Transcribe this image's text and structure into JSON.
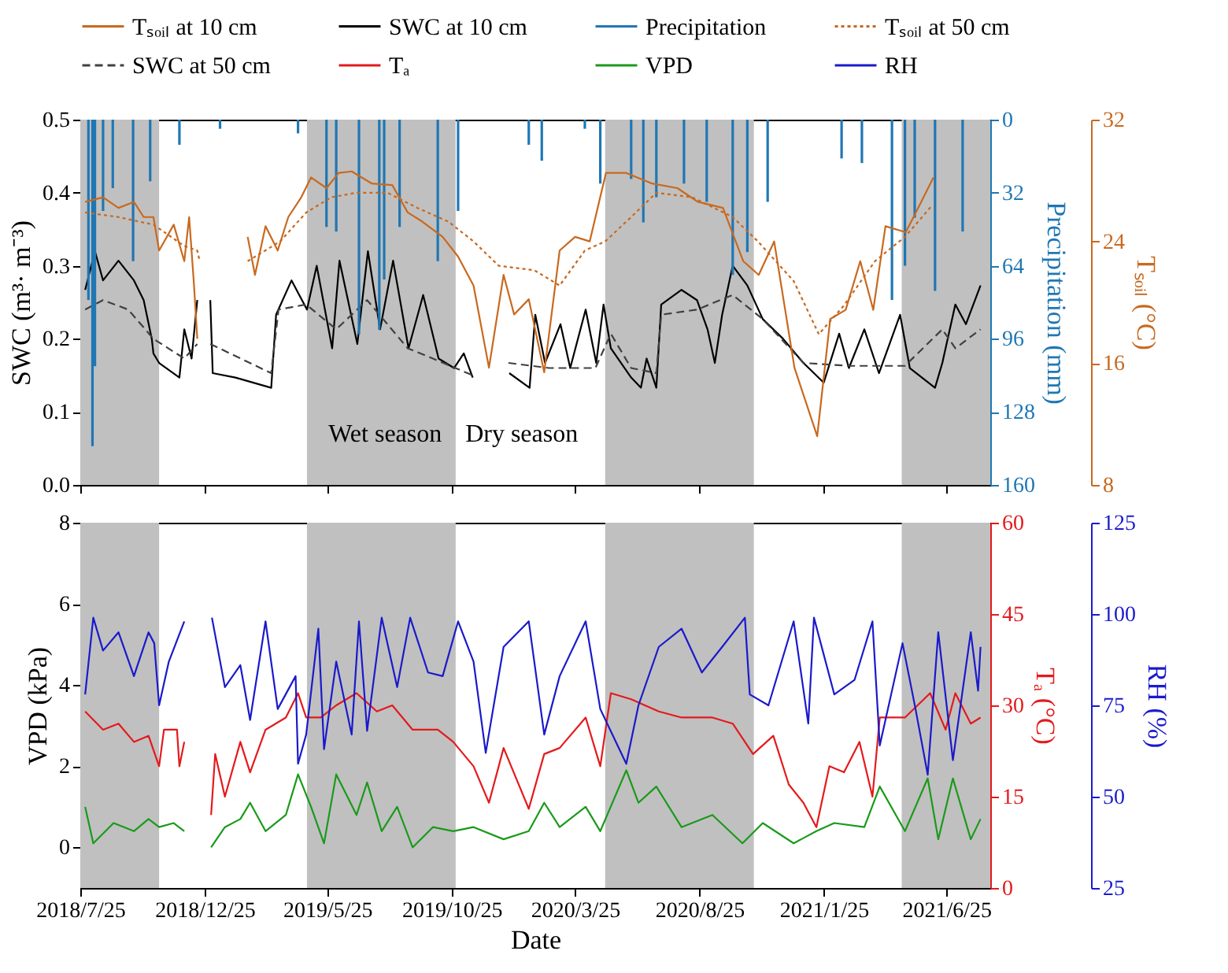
{
  "chart_data": [
    {
      "type": "line",
      "xlim": [
        "2018-07-25",
        "2021-08-18"
      ],
      "xticks": [
        {
          "value": "2018-07-25",
          "label": null
        },
        {
          "value": "2018-12-25",
          "label": null
        },
        {
          "value": "2019-05-25",
          "label": null
        },
        {
          "value": "2019-10-25",
          "label": null
        },
        {
          "value": "2020-03-25",
          "label": null
        },
        {
          "value": "2020-08-25",
          "label": null
        },
        {
          "value": "2021-01-25",
          "label": null
        },
        {
          "value": "2021-06-25",
          "label": null
        }
      ],
      "ylim": [
        0,
        0.5
      ],
      "yticks": [
        {
          "value": 0,
          "label": "0.0"
        },
        0.1,
        0.2,
        0.3,
        0.4,
        0.5
      ],
      "ylabel": "SWC (m³· m⁻³)",
      "y2lim": [
        160,
        0
      ],
      "y2ticks": [
        0,
        32,
        64,
        96,
        128,
        160
      ],
      "y2label": "Precipitation (mm)",
      "y3lim": [
        8,
        32
      ],
      "y3ticks": [
        8,
        16,
        24,
        32
      ],
      "y3label": "Tₛₒᵢₗ (°C)",
      "tick_labels": "y",
      "legend": "top",
      "bands": [
        {
          "axis": "x",
          "from": "2018-07-25",
          "to": "2018-10-30",
          "color": "#c0c0c0"
        },
        {
          "axis": "x",
          "from": "2019-04-30",
          "to": "2019-10-30",
          "color": "#c0c0c0"
        },
        {
          "axis": "x",
          "from": "2020-05-01",
          "to": "2020-10-31",
          "color": "#c0c0c0"
        },
        {
          "axis": "x",
          "from": "2021-05-01",
          "to": "2021-08-18",
          "color": "#c0c0c0"
        }
      ],
      "annotations": [
        "Wet season",
        "Dry season"
      ],
      "series": [
        {
          "name": "Tₛₒᵢₗ at 10 cm",
          "axis": "y3",
          "color": "#c8691f",
          "line_style": "solid",
          "x": [
            "2018-07-31",
            "2018-08-22",
            "2018-09-10",
            "2018-09-29",
            "2018-10-11",
            "2018-10-23",
            "2018-10-30",
            "2018-11-17",
            "2018-11-30",
            "2018-12-06",
            "2018-12-12",
            "2018-12-16",
            "2019-01-15",
            "2019-02-16",
            "2019-02-25",
            "2019-03-10",
            "2019-03-25",
            "2019-04-07",
            "2019-04-23",
            "2019-05-05",
            "2019-05-24",
            "2019-06-08",
            "2019-06-24",
            "2019-07-19",
            "2019-08-13",
            "2019-09-01",
            "2019-09-19",
            "2019-10-14",
            "2019-11-02",
            "2019-11-21",
            "2019-12-10",
            "2019-12-28",
            "2020-01-10",
            "2020-01-28",
            "2020-02-16",
            "2020-03-06",
            "2020-03-25",
            "2020-04-12",
            "2020-05-02",
            "2020-05-27",
            "2020-06-28",
            "2020-07-29",
            "2020-08-23",
            "2020-09-23",
            "2020-10-18",
            "2020-11-06",
            "2020-11-25",
            "2020-12-20",
            "2021-01-17",
            "2021-02-02",
            "2021-02-21",
            "2021-03-11",
            "2021-03-27",
            "2021-04-11",
            "2021-05-06",
            "2021-05-25",
            "2021-06-09"
          ],
          "values": [
            26.6,
            26.9,
            26.2,
            26.6,
            25.6,
            25.6,
            23.4,
            25.1,
            22.7,
            25.6,
            21.1,
            17.6,
            null,
            24.3,
            21.8,
            25.0,
            23.4,
            25.6,
            26.9,
            28.2,
            27.5,
            28.5,
            28.6,
            27.8,
            27.7,
            25.9,
            25.3,
            24.3,
            23.0,
            21.1,
            15.7,
            21.8,
            19.2,
            20.2,
            15.4,
            23.4,
            24.3,
            24.0,
            28.5,
            28.5,
            27.8,
            27.5,
            26.6,
            26.2,
            22.7,
            21.8,
            24.0,
            15.7,
            11.2,
            18.9,
            19.5,
            22.7,
            19.5,
            25.0,
            24.6,
            26.6,
            28.2
          ]
        },
        {
          "name": "SWC at 10 cm",
          "axis": "y",
          "color": "#000000",
          "line_style": "solid",
          "x": [
            "2018-07-31",
            "2018-08-12",
            "2018-08-22",
            "2018-09-10",
            "2018-09-29",
            "2018-10-11",
            "2018-10-21",
            "2018-10-23",
            "2018-10-30",
            "2018-11-24",
            "2018-11-30",
            "2018-12-09",
            "2018-12-16",
            "2018-12-24",
            "2019-01-01",
            "2019-01-04",
            "2019-02-01",
            "2019-03-17",
            "2019-03-23",
            "2019-04-11",
            "2019-04-30",
            "2019-05-12",
            "2019-05-31",
            "2019-06-09",
            "2019-07-01",
            "2019-07-14",
            "2019-07-29",
            "2019-08-14",
            "2019-09-02",
            "2019-09-20",
            "2019-10-09",
            "2019-10-28",
            "2019-11-09",
            "2019-11-20",
            "2019-12-10",
            "2020-01-04",
            "2020-01-29",
            "2020-02-05",
            "2020-02-17",
            "2020-03-07",
            "2020-03-19",
            "2020-04-07",
            "2020-04-20",
            "2020-04-29",
            "2020-05-08",
            "2020-06-02",
            "2020-06-14",
            "2020-06-21",
            "2020-07-03",
            "2020-07-09",
            "2020-08-03",
            "2020-08-22",
            "2020-09-04",
            "2020-09-13",
            "2020-09-22",
            "2020-10-05",
            "2020-10-23",
            "2020-11-11",
            "2020-12-06",
            "2020-12-31",
            "2021-01-25",
            "2021-02-13",
            "2021-02-25",
            "2021-03-16",
            "2021-04-03",
            "2021-04-29",
            "2021-05-11",
            "2021-06-11",
            "2021-06-20",
            "2021-07-06",
            "2021-07-19",
            "2021-08-06"
          ],
          "values": [
            0.267,
            0.32,
            0.28,
            0.307,
            0.28,
            0.253,
            0.2,
            0.18,
            0.167,
            0.147,
            0.213,
            0.173,
            0.253,
            null,
            0.253,
            0.153,
            0.147,
            0.133,
            0.233,
            0.28,
            0.24,
            0.3,
            0.187,
            0.307,
            0.193,
            0.32,
            0.213,
            0.307,
            0.187,
            0.26,
            0.173,
            0.16,
            0.18,
            0.147,
            null,
            0.153,
            0.133,
            0.233,
            0.167,
            0.22,
            0.16,
            0.24,
            0.167,
            0.247,
            0.187,
            0.147,
            0.133,
            0.173,
            0.133,
            0.247,
            0.267,
            0.253,
            0.213,
            0.167,
            0.233,
            0.3,
            0.273,
            0.227,
            0.2,
            0.167,
            0.14,
            0.207,
            0.16,
            0.213,
            0.153,
            0.233,
            0.16,
            0.133,
            0.167,
            0.247,
            0.22,
            0.273
          ]
        },
        {
          "name": "Precipitation",
          "type": "bar",
          "axis": "y2",
          "color": "#1f77b4",
          "x": [
            "2018-08-04",
            "2018-08-09",
            "2018-08-12",
            "2018-08-22",
            "2018-09-03",
            "2018-09-28",
            "2018-10-19",
            "2018-11-24",
            "2019-01-13",
            "2019-04-19",
            "2019-05-24",
            "2019-06-05",
            "2019-07-03",
            "2019-07-28",
            "2019-08-03",
            "2019-08-22",
            "2019-10-08",
            "2019-11-02",
            "2020-01-28",
            "2020-02-13",
            "2020-04-06",
            "2020-04-25",
            "2020-06-02",
            "2020-06-17",
            "2020-07-03",
            "2020-08-06",
            "2020-09-03",
            "2020-10-05",
            "2020-10-23",
            "2020-11-17",
            "2021-02-16",
            "2021-03-13",
            "2021-04-19",
            "2021-05-05",
            "2021-05-17",
            "2021-06-11",
            "2021-07-15"
          ],
          "values": [
            79,
            143,
            108,
            40,
            30,
            62,
            27,
            11,
            4,
            6,
            47,
            49,
            94,
            92,
            70,
            47,
            62,
            40,
            11,
            18,
            4,
            28,
            26,
            45,
            34,
            28,
            36,
            68,
            58,
            36,
            17,
            19,
            79,
            64,
            43,
            75,
            49
          ]
        },
        {
          "name": "Tₛₒᵢₗ at 50 cm",
          "axis": "y3",
          "color": "#c8691f",
          "line_style": "dotted",
          "x": [
            "2018-07-31",
            "2018-09-10",
            "2018-10-23",
            "2018-11-30",
            "2018-12-16",
            "2018-12-19",
            "2019-01-20",
            "2019-02-16",
            "2019-03-28",
            "2019-04-29",
            "2019-05-30",
            "2019-06-30",
            "2019-08-07",
            "2019-09-13",
            "2019-10-21",
            "2019-11-21",
            "2019-12-22",
            "2020-02-04",
            "2020-03-06",
            "2020-04-06",
            "2020-05-01",
            "2020-06-02",
            "2020-07-03",
            "2020-08-16",
            "2020-10-05",
            "2020-11-05",
            "2020-12-19",
            "2021-01-19",
            "2021-02-19",
            "2021-03-29",
            "2021-05-05",
            "2021-06-08"
          ],
          "values": [
            25.9,
            25.6,
            25.1,
            23.7,
            23.4,
            22.7,
            null,
            22.7,
            24.0,
            25.9,
            26.9,
            27.2,
            27.2,
            26.2,
            25.3,
            24.0,
            22.4,
            22.1,
            21.1,
            23.4,
            24.0,
            25.6,
            27.2,
            26.9,
            25.6,
            24.0,
            21.4,
            17.9,
            19.8,
            22.7,
            24.3,
            26.4
          ]
        },
        {
          "name": "SWC at 50 cm",
          "axis": "y",
          "color": "#404040",
          "line_style": "dashed",
          "x": [
            "2018-07-31",
            "2018-08-22",
            "2018-09-22",
            "2018-10-23",
            "2018-11-30",
            "2018-12-16",
            "2018-12-24",
            "2019-01-01",
            "2019-03-17",
            "2019-03-26",
            "2019-04-29",
            "2019-06-05",
            "2019-07-13",
            "2019-09-01",
            "2019-10-02",
            "2019-11-20",
            "2019-12-10",
            "2020-01-03",
            "2020-02-22",
            "2020-04-19",
            "2020-05-08",
            "2020-06-02",
            "2020-07-03",
            "2020-07-09",
            "2020-08-22",
            "2020-10-05",
            "2020-11-11",
            "2020-12-31",
            "2021-02-25",
            "2021-05-05",
            "2021-06-20",
            "2021-07-06",
            "2021-08-06"
          ],
          "values": [
            0.24,
            0.253,
            0.24,
            0.2,
            0.173,
            0.193,
            null,
            0.193,
            0.153,
            0.24,
            0.247,
            0.213,
            0.253,
            0.187,
            0.173,
            0.15,
            null,
            0.167,
            0.16,
            0.16,
            0.207,
            0.16,
            0.153,
            0.233,
            0.24,
            0.26,
            0.227,
            0.167,
            0.163,
            0.163,
            0.213,
            0.187,
            0.213
          ]
        }
      ]
    },
    {
      "type": "line",
      "xlim": [
        "2018-07-25",
        "2021-08-18"
      ],
      "xticks": [
        {
          "value": "2018-07-25",
          "label": "2018/7/25"
        },
        {
          "value": "2018-12-25",
          "label": "2018/12/25"
        },
        {
          "value": "2019-05-25",
          "label": "2019/5/25"
        },
        {
          "value": "2019-10-25",
          "label": "2019/10/25"
        },
        {
          "value": "2020-03-25",
          "label": "2020/3/25"
        },
        {
          "value": "2020-08-25",
          "label": "2020/8/25"
        },
        {
          "value": "2021-01-25",
          "label": "2021/1/25"
        },
        {
          "value": "2021-06-25",
          "label": "2021/6/25"
        }
      ],
      "xlabel": "Date",
      "legend": "top",
      "ylim": [
        -1,
        8
      ],
      "yticks": [
        0,
        2,
        4,
        6,
        8
      ],
      "ylabel": "VPD (kPa)",
      "y2lim": [
        0,
        60
      ],
      "y2ticks": [
        0,
        15,
        30,
        45,
        60
      ],
      "y2label": "Tₐ (°C)",
      "y3lim": [
        25,
        125
      ],
      "y3ticks": [
        25,
        50,
        75,
        100,
        125
      ],
      "y3label": "RH (%)",
      "bands": [
        {
          "axis": "x",
          "from": "2018-07-25",
          "to": "2018-10-30",
          "color": "#c0c0c0"
        },
        {
          "axis": "x",
          "from": "2019-04-30",
          "to": "2019-10-30",
          "color": "#c0c0c0"
        },
        {
          "axis": "x",
          "from": "2020-05-01",
          "to": "2020-10-31",
          "color": "#c0c0c0"
        },
        {
          "axis": "x",
          "from": "2021-05-01",
          "to": "2021-08-18",
          "color": "#c0c0c0"
        }
      ],
      "series": [
        {
          "name": "Tₐ",
          "axis": "y2",
          "color": "#e41a1c",
          "line_style": "solid",
          "x": [
            "2018-07-31",
            "2018-08-22",
            "2018-09-10",
            "2018-09-29",
            "2018-10-17",
            "2018-10-30",
            "2018-11-05",
            "2018-11-21",
            "2018-11-24",
            "2018-11-30",
            "2018-12-15",
            "2019-01-02",
            "2019-01-07",
            "2019-01-19",
            "2019-02-07",
            "2019-02-19",
            "2019-03-10",
            "2019-04-04",
            "2019-04-19",
            "2019-04-29",
            "2019-05-17",
            "2019-06-05",
            "2019-06-30",
            "2019-07-25",
            "2019-08-13",
            "2019-09-07",
            "2019-10-08",
            "2019-10-27",
            "2019-11-21",
            "2019-12-10",
            "2019-12-28",
            "2020-01-28",
            "2020-02-16",
            "2020-03-06",
            "2020-04-07",
            "2020-04-25",
            "2020-05-08",
            "2020-06-02",
            "2020-07-06",
            "2020-08-03",
            "2020-09-10",
            "2020-10-05",
            "2020-10-30",
            "2020-11-24",
            "2020-12-13",
            "2020-12-31",
            "2021-01-16",
            "2021-02-01",
            "2021-02-19",
            "2021-03-10",
            "2021-03-26",
            "2021-04-04",
            "2021-05-05",
            "2021-06-05",
            "2021-06-24",
            "2021-07-06",
            "2021-07-25",
            "2021-08-06"
          ],
          "values": [
            29,
            26,
            27,
            24,
            25,
            20,
            26,
            26,
            20,
            24,
            null,
            12,
            22,
            15,
            24,
            19,
            26,
            28,
            32,
            28,
            28,
            30,
            32,
            29,
            30,
            26,
            26,
            24,
            20,
            14,
            23,
            13,
            22,
            23,
            28,
            20,
            32,
            31,
            29,
            28,
            28,
            27,
            22,
            25,
            17,
            14,
            10,
            20,
            19,
            24,
            15,
            28,
            28,
            32,
            26,
            32,
            27,
            28
          ]
        },
        {
          "name": "VPD",
          "axis": "y",
          "color": "#1a9a1a",
          "line_style": "solid",
          "x": [
            "2018-07-31",
            "2018-08-10",
            "2018-09-04",
            "2018-09-29",
            "2018-10-17",
            "2018-10-30",
            "2018-11-17",
            "2018-11-30",
            "2018-12-15",
            "2019-01-02",
            "2019-01-19",
            "2019-02-07",
            "2019-02-19",
            "2019-03-10",
            "2019-04-04",
            "2019-04-19",
            "2019-05-05",
            "2019-05-21",
            "2019-06-05",
            "2019-06-30",
            "2019-07-13",
            "2019-07-31",
            "2019-08-19",
            "2019-09-07",
            "2019-10-02",
            "2019-10-27",
            "2019-11-21",
            "2019-12-28",
            "2020-01-28",
            "2020-02-16",
            "2020-03-06",
            "2020-04-07",
            "2020-04-25",
            "2020-05-27",
            "2020-06-11",
            "2020-07-03",
            "2020-08-03",
            "2020-09-10",
            "2020-10-17",
            "2020-11-11",
            "2020-12-19",
            "2021-01-16",
            "2021-02-07",
            "2021-03-16",
            "2021-04-04",
            "2021-05-05",
            "2021-06-02",
            "2021-06-15",
            "2021-07-03",
            "2021-07-25",
            "2021-08-06"
          ],
          "values": [
            1.0,
            0.1,
            0.6,
            0.4,
            0.7,
            0.5,
            0.6,
            0.4,
            null,
            0.0,
            0.5,
            0.7,
            1.1,
            0.4,
            0.8,
            1.8,
            1.0,
            0.1,
            1.8,
            0.8,
            1.6,
            0.4,
            1.0,
            0.0,
            0.5,
            0.4,
            0.5,
            0.2,
            0.4,
            1.1,
            0.5,
            1.0,
            0.4,
            1.9,
            1.1,
            1.5,
            0.5,
            0.8,
            0.1,
            0.6,
            0.1,
            0.4,
            0.6,
            0.5,
            1.5,
            0.4,
            1.7,
            0.2,
            1.7,
            0.2,
            0.7
          ]
        },
        {
          "name": "RH",
          "axis": "y3",
          "color": "#1a1acc",
          "line_style": "solid",
          "x": [
            "2018-07-31",
            "2018-08-10",
            "2018-08-22",
            "2018-09-10",
            "2018-09-29",
            "2018-10-17",
            "2018-10-24",
            "2018-10-30",
            "2018-11-11",
            "2018-11-30",
            "2018-12-15",
            "2019-01-03",
            "2019-01-19",
            "2019-02-07",
            "2019-02-19",
            "2019-03-10",
            "2019-03-25",
            "2019-04-16",
            "2019-04-19",
            "2019-04-29",
            "2019-05-14",
            "2019-05-21",
            "2019-06-05",
            "2019-06-24",
            "2019-07-03",
            "2019-07-13",
            "2019-07-31",
            "2019-08-19",
            "2019-09-04",
            "2019-09-26",
            "2019-10-14",
            "2019-11-02",
            "2019-11-21",
            "2019-12-06",
            "2019-12-28",
            "2020-01-28",
            "2020-02-16",
            "2020-03-06",
            "2020-04-07",
            "2020-04-25",
            "2020-05-27",
            "2020-06-11",
            "2020-07-06",
            "2020-08-03",
            "2020-08-28",
            "2020-09-22",
            "2020-10-20",
            "2020-10-26",
            "2020-11-18",
            "2020-12-19",
            "2021-01-06",
            "2021-01-13",
            "2021-02-07",
            "2021-03-04",
            "2021-03-26",
            "2021-04-04",
            "2021-05-02",
            "2021-05-18",
            "2021-06-02",
            "2021-06-15",
            "2021-07-03",
            "2021-07-25",
            "2021-08-03",
            "2021-08-06"
          ],
          "values": [
            78,
            99,
            90,
            95,
            83,
            95,
            92,
            75,
            87,
            98,
            null,
            99,
            80,
            86,
            71,
            98,
            74,
            83,
            59,
            67,
            96,
            63,
            87,
            67,
            98,
            68,
            99,
            80,
            99,
            84,
            83,
            98,
            87,
            62,
            91,
            98,
            67,
            83,
            98,
            74,
            59,
            75,
            91,
            96,
            84,
            91,
            99,
            78,
            75,
            98,
            70,
            99,
            78,
            82,
            98,
            64,
            92,
            74,
            56,
            95,
            60,
            95,
            79,
            91
          ]
        }
      ]
    }
  ]
}
